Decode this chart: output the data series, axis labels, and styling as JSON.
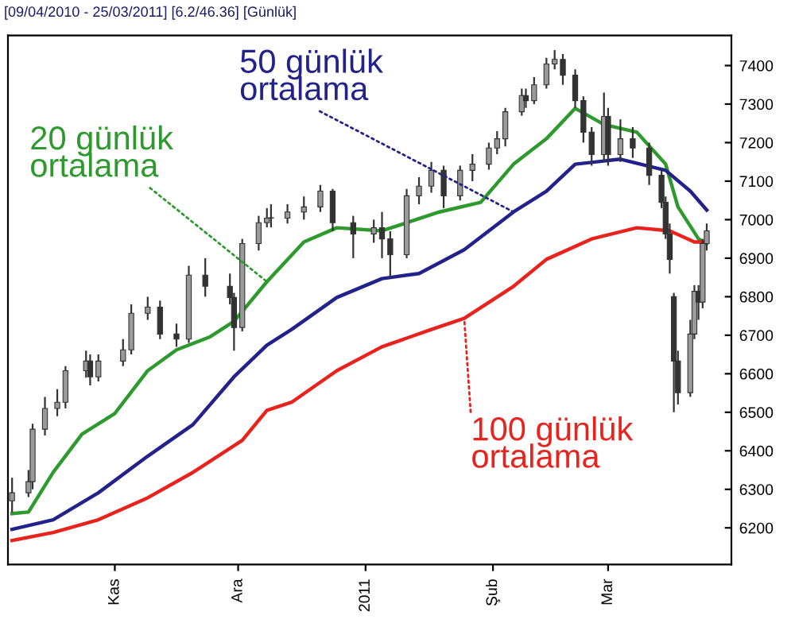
{
  "chart_data": {
    "type": "candlestick",
    "title": "[09/04/2010 - 25/03/2011] [6.2/46.36] [Günlük]",
    "xlim": [
      "2010-10-06",
      "2011-03-31"
    ],
    "ylim": [
      6105,
      7478
    ],
    "xticks": [
      {
        "value": "2010-11-01",
        "label": "Kas"
      },
      {
        "value": "2010-12-01",
        "label": "Ara"
      },
      {
        "value": "2011-01-01",
        "label": "2011"
      },
      {
        "value": "2011-02-01",
        "label": "Şub"
      },
      {
        "value": "2011-03-01",
        "label": "Mar"
      }
    ],
    "yticks": [
      6200,
      6300,
      6400,
      6500,
      6600,
      6700,
      6800,
      6900,
      7000,
      7100,
      7200,
      7300,
      7400
    ],
    "grid": false,
    "legend": false,
    "series": [
      {
        "color": "#333333",
        "x": [
          "2010-10-07",
          "2010-10-11",
          "2010-10-12",
          "2010-10-15",
          "2010-10-18",
          "2010-10-20",
          "2010-10-25",
          "2010-10-26",
          "2010-10-28",
          "2010-11-03",
          "2010-11-05",
          "2010-11-09",
          "2010-11-12",
          "2010-11-16",
          "2010-11-19",
          "2010-11-23",
          "2010-11-29",
          "2010-11-30",
          "2010-12-02",
          "2010-12-06",
          "2010-12-08",
          "2010-12-09",
          "2010-12-13",
          "2010-12-17",
          "2010-12-21",
          "2010-12-24",
          "2010-12-29",
          "2011-01-03",
          "2011-01-05",
          "2011-01-07",
          "2011-01-11",
          "2011-01-14",
          "2011-01-17",
          "2011-01-20",
          "2011-01-24",
          "2011-01-27",
          "2011-01-31",
          "2011-02-02",
          "2011-02-04",
          "2011-02-08",
          "2011-02-09",
          "2011-02-11",
          "2011-02-14",
          "2011-02-16",
          "2011-02-18",
          "2011-02-21",
          "2011-02-23",
          "2011-02-25",
          "2011-02-28",
          "2011-03-01",
          "2011-03-04",
          "2011-03-07",
          "2011-03-11",
          "2011-03-14",
          "2011-03-15",
          "2011-03-16",
          "2011-03-17",
          "2011-03-18",
          "2011-03-21",
          "2011-03-22",
          "2011-03-23",
          "2011-03-24",
          "2011-03-25"
        ],
        "ohlc": [
          [
            6270,
            6330,
            6240,
            6291
          ],
          [
            6291,
            6350,
            6280,
            6320
          ],
          [
            6320,
            6470,
            6300,
            6456
          ],
          [
            6456,
            6540,
            6440,
            6510
          ],
          [
            6510,
            6560,
            6490,
            6526
          ],
          [
            6526,
            6620,
            6510,
            6608
          ],
          [
            6608,
            6660,
            6590,
            6633
          ],
          [
            6633,
            6650,
            6570,
            6592
          ],
          [
            6592,
            6650,
            6580,
            6633
          ],
          [
            6633,
            6690,
            6620,
            6662
          ],
          [
            6662,
            6780,
            6650,
            6757
          ],
          [
            6757,
            6800,
            6740,
            6773
          ],
          [
            6773,
            6790,
            6690,
            6703
          ],
          [
            6703,
            6730,
            6670,
            6690
          ],
          [
            6690,
            6880,
            6680,
            6856
          ],
          [
            6856,
            6900,
            6800,
            6827
          ],
          [
            6827,
            6860,
            6780,
            6798
          ],
          [
            6798,
            6810,
            6660,
            6720
          ],
          [
            6720,
            6950,
            6710,
            6938
          ],
          [
            6938,
            7010,
            6920,
            6992
          ],
          [
            6992,
            7030,
            6980,
            7004
          ],
          [
            7004,
            7040,
            6980,
            7004
          ],
          [
            7004,
            7040,
            6990,
            7020
          ],
          [
            7020,
            7060,
            7000,
            7033
          ],
          [
            7033,
            7090,
            7020,
            7074
          ],
          [
            7074,
            7080,
            6970,
            6992
          ],
          [
            6992,
            7010,
            6900,
            6963
          ],
          [
            6963,
            7000,
            6940,
            6979
          ],
          [
            6979,
            7020,
            6900,
            6950
          ],
          [
            6950,
            6970,
            6850,
            6909
          ],
          [
            6909,
            7080,
            6900,
            7062
          ],
          [
            7062,
            7110,
            7040,
            7087
          ],
          [
            7087,
            7150,
            7070,
            7128
          ],
          [
            7128,
            7140,
            7030,
            7062
          ],
          [
            7062,
            7140,
            7050,
            7128
          ],
          [
            7128,
            7170,
            7100,
            7144
          ],
          [
            7144,
            7200,
            7130,
            7186
          ],
          [
            7186,
            7230,
            7170,
            7210
          ],
          [
            7210,
            7290,
            7190,
            7280
          ],
          [
            7280,
            7340,
            7270,
            7322
          ],
          [
            7322,
            7340,
            7290,
            7309
          ],
          [
            7309,
            7370,
            7300,
            7350
          ],
          [
            7350,
            7420,
            7340,
            7404
          ],
          [
            7404,
            7440,
            7390,
            7416
          ],
          [
            7416,
            7430,
            7350,
            7375
          ],
          [
            7375,
            7390,
            7290,
            7309
          ],
          [
            7309,
            7320,
            7200,
            7227
          ],
          [
            7227,
            7240,
            7140,
            7169
          ],
          [
            7169,
            7330,
            7150,
            7268
          ],
          [
            7268,
            7290,
            7140,
            7169
          ],
          [
            7169,
            7260,
            7150,
            7210
          ],
          [
            7210,
            7240,
            7160,
            7186
          ],
          [
            7186,
            7200,
            7090,
            7115
          ],
          [
            7115,
            7130,
            7030,
            7045
          ],
          [
            7045,
            7060,
            6950,
            6963
          ],
          [
            6963,
            6990,
            6860,
            6897
          ],
          [
            6800,
            6810,
            6500,
            6633
          ],
          [
            6633,
            6660,
            6520,
            6551
          ],
          [
            6551,
            6740,
            6540,
            6703
          ],
          [
            6703,
            6830,
            6690,
            6814
          ],
          [
            6814,
            6830,
            6740,
            6786
          ],
          [
            6786,
            6950,
            6770,
            6938
          ],
          [
            6938,
            6990,
            6920,
            6971
          ]
        ]
      },
      {
        "type": "line",
        "name": "20 günlük ortalama",
        "color": "#2e9a2e",
        "x": [
          "2010-10-07",
          "2010-10-11",
          "2010-10-17",
          "2010-10-24",
          "2010-11-01",
          "2010-11-09",
          "2010-11-16",
          "2010-11-24",
          "2010-11-30",
          "2010-12-08",
          "2010-12-17",
          "2010-12-25",
          "2011-01-05",
          "2011-01-19",
          "2011-01-29",
          "2011-02-06",
          "2011-02-14",
          "2011-02-21",
          "2011-02-28",
          "2011-03-08",
          "2011-03-15",
          "2011-03-18",
          "2011-03-23",
          "2011-03-25"
        ],
        "values": [
          6237,
          6241,
          6344,
          6443,
          6497,
          6608,
          6662,
          6695,
          6736,
          6839,
          6942,
          6979,
          6971,
          7020,
          7045,
          7144,
          7210,
          7289,
          7247,
          7227,
          7144,
          7033,
          6950,
          6938
        ]
      },
      {
        "type": "line",
        "name": "50 günlük ortalama",
        "color": "#22228a",
        "x": [
          "2010-10-07",
          "2010-10-17",
          "2010-10-28",
          "2010-11-09",
          "2010-11-20",
          "2010-11-30",
          "2010-12-08",
          "2010-12-14",
          "2010-12-25",
          "2011-01-05",
          "2011-01-14",
          "2011-01-25",
          "2011-02-06",
          "2011-02-14",
          "2011-02-21",
          "2011-03-04",
          "2011-03-15",
          "2011-03-21",
          "2011-03-25"
        ],
        "values": [
          6196,
          6221,
          6291,
          6386,
          6468,
          6592,
          6674,
          6715,
          6798,
          6847,
          6860,
          6922,
          7020,
          7074,
          7144,
          7157,
          7128,
          7074,
          7025
        ]
      },
      {
        "type": "line",
        "name": "100 günlük ortalama",
        "color": "#e8231e",
        "x": [
          "2010-10-07",
          "2010-10-17",
          "2010-10-28",
          "2010-11-09",
          "2010-11-20",
          "2010-12-02",
          "2010-12-08",
          "2010-12-14",
          "2010-12-25",
          "2011-01-05",
          "2011-01-17",
          "2011-01-25",
          "2011-02-06",
          "2011-02-14",
          "2011-02-25",
          "2011-03-08",
          "2011-03-16",
          "2011-03-22",
          "2011-03-25"
        ],
        "values": [
          6167,
          6188,
          6221,
          6278,
          6344,
          6427,
          6505,
          6526,
          6608,
          6670,
          6715,
          6744,
          6827,
          6897,
          6950,
          6979,
          6971,
          6942,
          6942
        ]
      }
    ]
  }
}
